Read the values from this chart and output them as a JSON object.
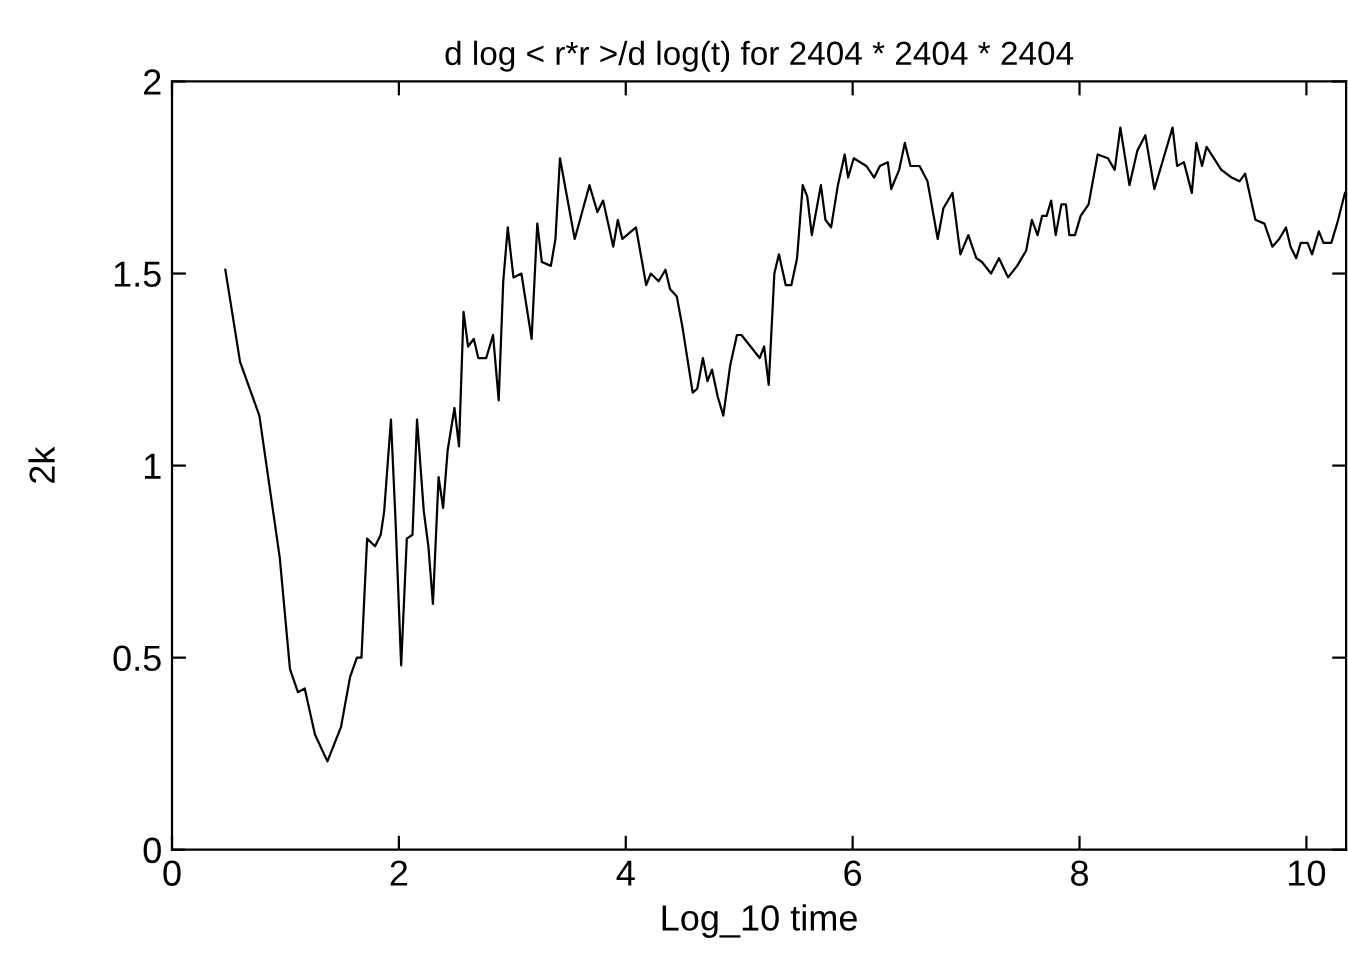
{
  "chart_data": {
    "type": "line",
    "title": "d log < r*r >/d log(t) for 2404 * 2404 * 2404",
    "xlabel": "Log_10 time",
    "ylabel": "2k",
    "xlim": [
      0,
      10.35
    ],
    "xticks": [
      0,
      2,
      4,
      6,
      8,
      10
    ],
    "ylim": [
      0,
      2
    ],
    "yticks": [
      0,
      {
        "value": 0.5,
        "label": "0.5"
      },
      1,
      {
        "value": 1.5,
        "label": "1.5"
      },
      2
    ],
    "grid": false,
    "legend": false,
    "series": [
      {
        "color": "#000000",
        "x": [
          0.47,
          0.6,
          0.77,
          0.95,
          1.04,
          1.11,
          1.17,
          1.26,
          1.37,
          1.49,
          1.57,
          1.63,
          1.67,
          1.72,
          1.79,
          1.84,
          1.87,
          1.93,
          1.97,
          2.02,
          2.07,
          2.12,
          2.16,
          2.22,
          2.26,
          2.3,
          2.35,
          2.39,
          2.43,
          2.49,
          2.53,
          2.57,
          2.61,
          2.66,
          2.7,
          2.77,
          2.83,
          2.88,
          2.92,
          2.96,
          3.01,
          3.08,
          3.17,
          3.22,
          3.26,
          3.34,
          3.38,
          3.42,
          3.55,
          3.68,
          3.75,
          3.8,
          3.89,
          3.93,
          3.97,
          4.09,
          4.18,
          4.22,
          4.29,
          4.35,
          4.39,
          4.45,
          4.5,
          4.59,
          4.63,
          4.68,
          4.72,
          4.76,
          4.81,
          4.86,
          4.92,
          4.98,
          5.02,
          5.1,
          5.18,
          5.22,
          5.26,
          5.31,
          5.35,
          5.41,
          5.46,
          5.51,
          5.56,
          5.6,
          5.64,
          5.72,
          5.76,
          5.81,
          5.87,
          5.93,
          5.96,
          6.01,
          6.12,
          6.19,
          6.24,
          6.31,
          6.34,
          6.41,
          6.46,
          6.51,
          6.59,
          6.66,
          6.75,
          6.8,
          6.88,
          6.95,
          7.02,
          7.09,
          7.14,
          7.22,
          7.29,
          7.37,
          7.45,
          7.53,
          7.58,
          7.63,
          7.67,
          7.71,
          7.75,
          7.79,
          7.84,
          7.88,
          7.91,
          7.96,
          8.01,
          8.08,
          8.16,
          8.25,
          8.31,
          8.36,
          8.44,
          8.51,
          8.58,
          8.66,
          8.72,
          8.82,
          8.86,
          8.92,
          8.99,
          9.03,
          9.08,
          9.12,
          9.25,
          9.34,
          9.41,
          9.46,
          9.55,
          9.63,
          9.7,
          9.76,
          9.82,
          9.86,
          9.91,
          9.95,
          10.01,
          10.05,
          10.11,
          10.15,
          10.22,
          10.28,
          10.34
        ],
        "values": [
          1.51,
          1.27,
          1.13,
          0.76,
          0.47,
          0.41,
          0.42,
          0.3,
          0.23,
          0.32,
          0.45,
          0.5,
          0.5,
          0.81,
          0.79,
          0.82,
          0.88,
          1.12,
          0.86,
          0.48,
          0.81,
          0.82,
          1.12,
          0.88,
          0.79,
          0.64,
          0.97,
          0.89,
          1.04,
          1.15,
          1.05,
          1.4,
          1.31,
          1.33,
          1.28,
          1.28,
          1.34,
          1.17,
          1.48,
          1.62,
          1.49,
          1.5,
          1.33,
          1.63,
          1.53,
          1.52,
          1.59,
          1.8,
          1.59,
          1.73,
          1.66,
          1.69,
          1.57,
          1.64,
          1.59,
          1.62,
          1.47,
          1.5,
          1.48,
          1.51,
          1.46,
          1.44,
          1.36,
          1.19,
          1.2,
          1.28,
          1.22,
          1.25,
          1.18,
          1.13,
          1.26,
          1.34,
          1.34,
          1.31,
          1.28,
          1.31,
          1.21,
          1.5,
          1.55,
          1.47,
          1.47,
          1.54,
          1.73,
          1.7,
          1.6,
          1.73,
          1.64,
          1.62,
          1.73,
          1.81,
          1.75,
          1.8,
          1.78,
          1.75,
          1.78,
          1.79,
          1.72,
          1.77,
          1.84,
          1.78,
          1.78,
          1.74,
          1.59,
          1.67,
          1.71,
          1.55,
          1.6,
          1.54,
          1.53,
          1.5,
          1.54,
          1.49,
          1.52,
          1.56,
          1.64,
          1.6,
          1.65,
          1.65,
          1.69,
          1.6,
          1.68,
          1.68,
          1.6,
          1.6,
          1.65,
          1.68,
          1.81,
          1.8,
          1.77,
          1.88,
          1.73,
          1.82,
          1.86,
          1.72,
          1.78,
          1.88,
          1.78,
          1.79,
          1.71,
          1.84,
          1.78,
          1.83,
          1.77,
          1.75,
          1.74,
          1.76,
          1.64,
          1.63,
          1.57,
          1.59,
          1.62,
          1.57,
          1.54,
          1.58,
          1.58,
          1.55,
          1.61,
          1.58,
          1.58,
          1.64,
          1.71
        ]
      }
    ]
  }
}
